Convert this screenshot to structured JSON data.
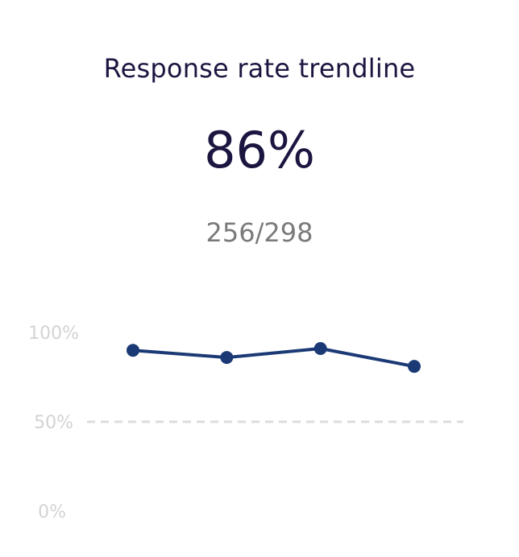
{
  "header": {
    "title": "Response rate trendline",
    "value": "86%",
    "ratio": "256/298"
  },
  "chart_data": {
    "type": "line",
    "title": "",
    "xlabel": "",
    "ylabel": "",
    "x": [
      1,
      2,
      3,
      4
    ],
    "series": [
      {
        "values": [
          90,
          86,
          91,
          81
        ]
      }
    ],
    "ylim": [
      0,
      100
    ],
    "yticks": [
      100,
      50,
      0
    ],
    "ytick_labels": [
      "100%",
      "50%",
      "0%"
    ],
    "dashed_reference_line": 50,
    "grid": false,
    "colors": {
      "line": "#1b3a75",
      "marker": "#1b3a75",
      "reference_line": "#dcdcdc",
      "tick_labels": "#d3d3d3"
    }
  }
}
